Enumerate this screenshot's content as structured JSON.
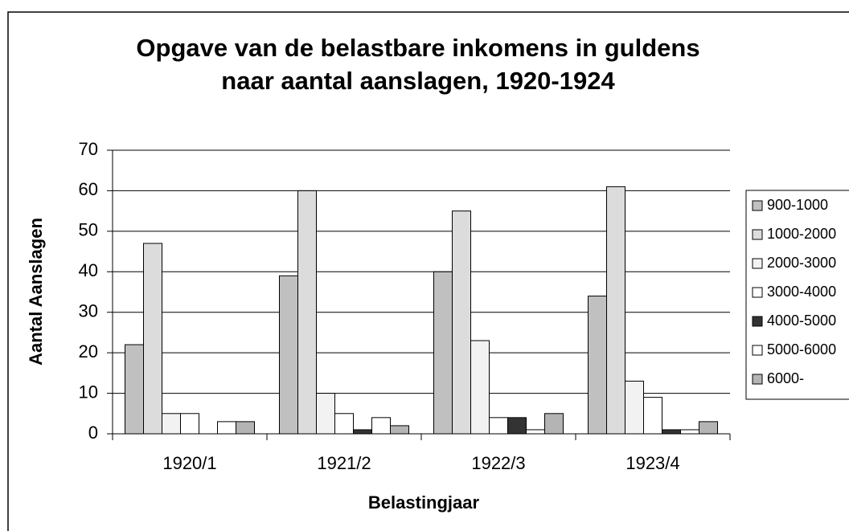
{
  "chart_data": {
    "type": "bar",
    "title": [
      "Opgave van de belastbare inkomens in guldens",
      "naar aantal aanslagen, 1920-1924"
    ],
    "x_label": "Belastingjaar",
    "y_label": "Aantal Aanslagen",
    "categories": [
      "1920/1",
      "1921/2",
      "1922/3",
      "1923/4"
    ],
    "series": [
      {
        "name": "900-1000",
        "color": "#c0c0c0",
        "values": [
          22,
          39,
          40,
          34
        ]
      },
      {
        "name": "1000-2000",
        "color": "#dcdcdc",
        "values": [
          47,
          60,
          55,
          61
        ]
      },
      {
        "name": "2000-3000",
        "color": "#f2f2f2",
        "values": [
          5,
          10,
          23,
          13
        ]
      },
      {
        "name": "3000-4000",
        "color": "#ffffff",
        "values": [
          5,
          5,
          4,
          9
        ]
      },
      {
        "name": "4000-5000",
        "color": "#333333",
        "values": [
          0,
          1,
          4,
          1
        ]
      },
      {
        "name": "5000-6000",
        "color": "#ffffff",
        "values": [
          3,
          4,
          1,
          1
        ]
      },
      {
        "name": "6000-",
        "color": "#b4b4b4",
        "values": [
          3,
          2,
          5,
          3
        ]
      }
    ],
    "ylim": [
      0,
      70
    ],
    "yticks": [
      0,
      10,
      20,
      30,
      40,
      50,
      60,
      70
    ],
    "grid": true,
    "legend": "right"
  }
}
